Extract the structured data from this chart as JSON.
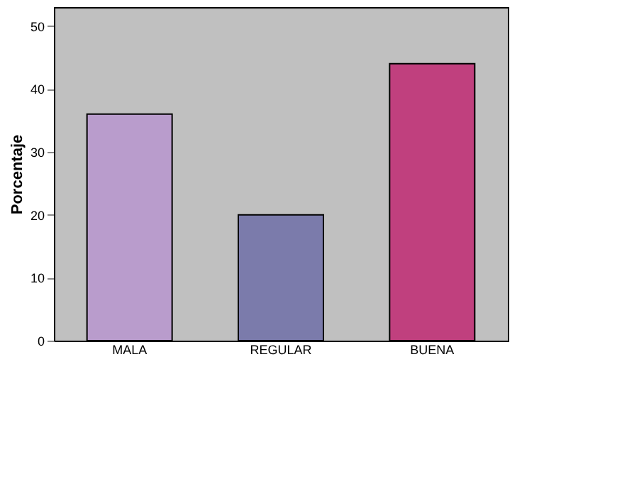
{
  "chart_data": {
    "type": "bar",
    "ylabel": "Porcentaje",
    "categories": [
      "MALA",
      "REGULAR",
      "BUENA"
    ],
    "values": [
      36,
      20,
      44
    ],
    "colors": [
      "#b99ccc",
      "#7b7bab",
      "#c0407e"
    ],
    "ylim": [
      0,
      53
    ],
    "yticks": [
      0,
      10,
      20,
      30,
      40,
      50
    ],
    "grid": false,
    "legend": false
  }
}
